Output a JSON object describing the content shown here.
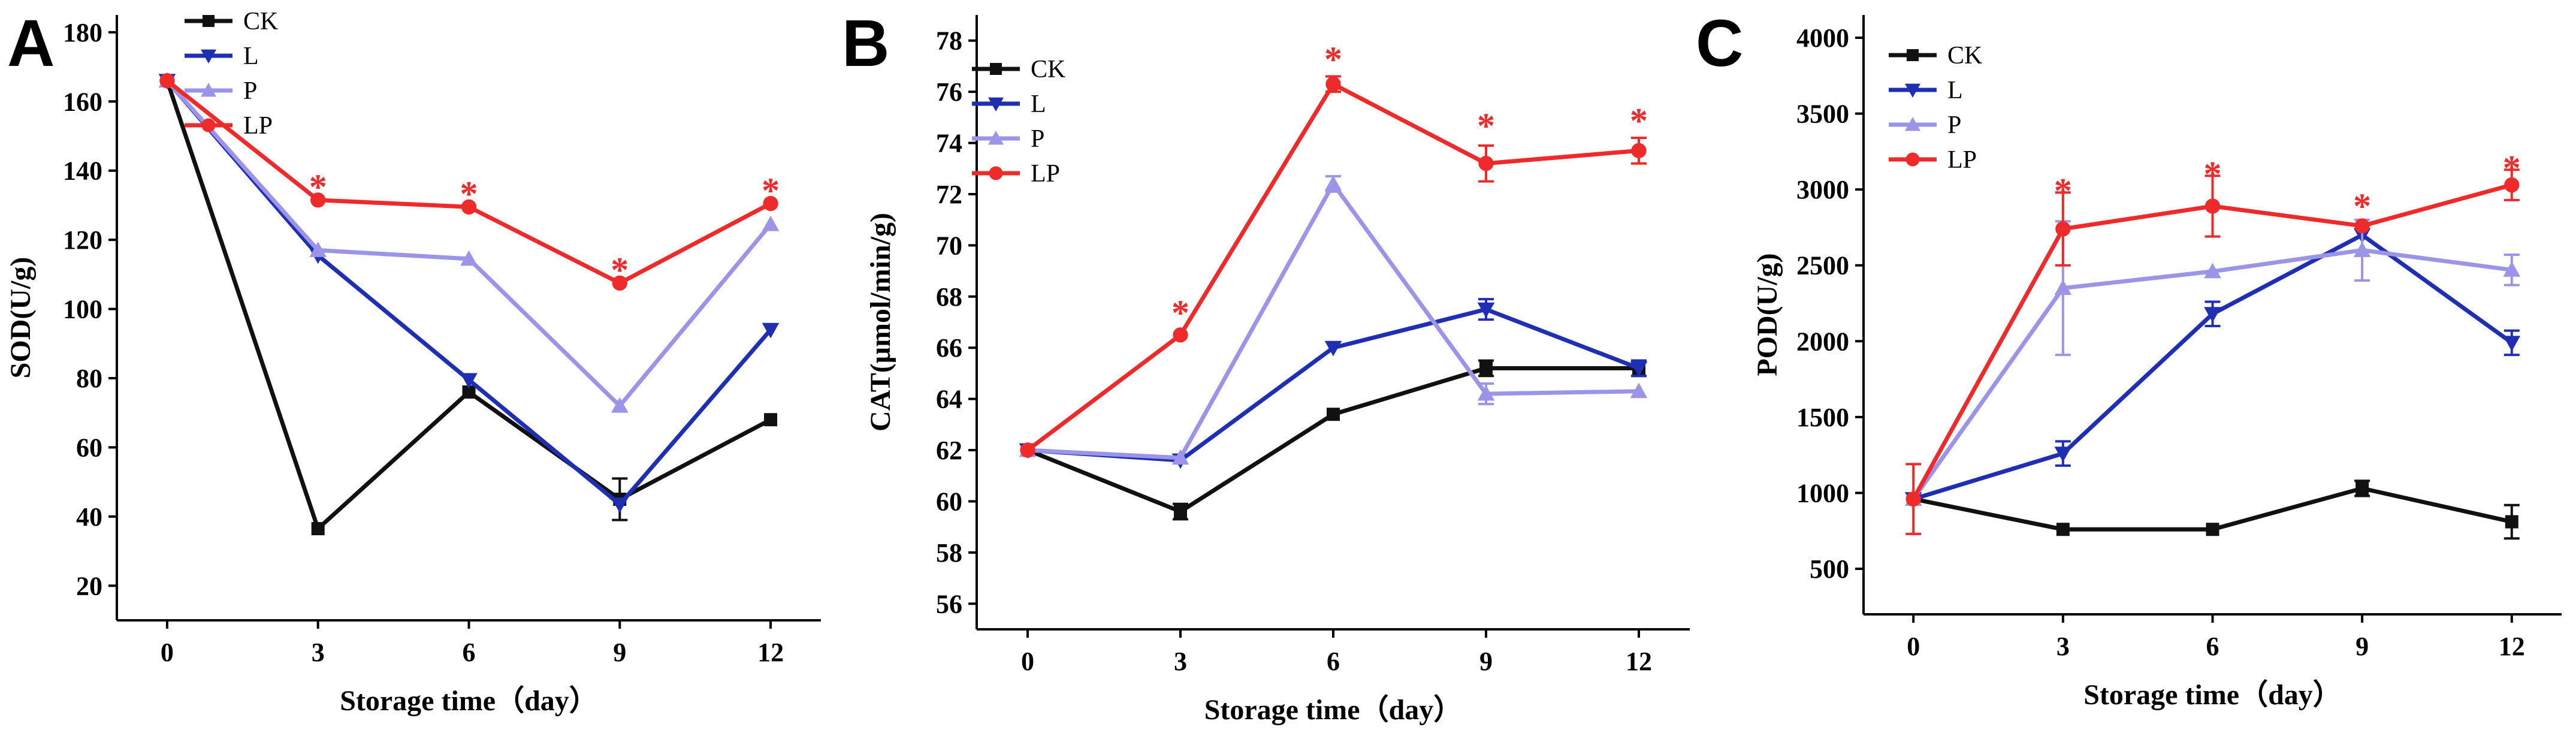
{
  "colors": {
    "CK": "#111111",
    "L": "#1f2fb4",
    "P": "#9c94e8",
    "LP": "#ee2a2a",
    "star": "#ee2a2a",
    "axis": "#000000"
  },
  "chart_data": [
    {
      "type": "line",
      "panel_label": "A",
      "xlabel": "Storage time（day）",
      "ylabel": "SOD(U/g)",
      "x": [
        0,
        3,
        6,
        9,
        12
      ],
      "xticks": [
        "0",
        "3",
        "6",
        "9",
        "12"
      ],
      "xlim": [
        -1,
        13
      ],
      "ylim": [
        10,
        185
      ],
      "yticks": [
        "20",
        "40",
        "60",
        "80",
        "100",
        "120",
        "140",
        "160",
        "180"
      ],
      "ytick_values": [
        20,
        40,
        60,
        80,
        100,
        120,
        140,
        160,
        180
      ],
      "legend_position": "top-left",
      "series": [
        {
          "name": "CK",
          "marker": "square",
          "values": [
            166,
            36.5,
            76,
            45,
            68
          ],
          "errors": [
            0,
            0,
            0,
            6,
            0
          ]
        },
        {
          "name": "L",
          "marker": "triangle-down",
          "values": [
            166,
            115.5,
            79.5,
            43.5,
            94
          ],
          "errors": [
            0,
            0,
            0,
            0,
            0
          ]
        },
        {
          "name": "P",
          "marker": "triangle-up",
          "values": [
            166,
            117,
            114.5,
            72,
            124.5
          ],
          "errors": [
            0,
            0,
            0,
            0,
            0
          ]
        },
        {
          "name": "LP",
          "marker": "circle",
          "values": [
            166,
            131.5,
            129.5,
            107.5,
            130.5
          ],
          "errors": [
            0,
            0,
            0,
            0,
            0
          ]
        }
      ],
      "annotations": [
        {
          "text": "*",
          "x": 3,
          "y": 137
        },
        {
          "text": "*",
          "x": 6,
          "y": 135
        },
        {
          "text": "*",
          "x": 9,
          "y": 113
        },
        {
          "text": "*",
          "x": 12,
          "y": 136
        }
      ]
    },
    {
      "type": "line",
      "panel_label": "B",
      "xlabel": "Storage time（day）",
      "ylabel": "CAT(μmol/min/g)",
      "x": [
        0,
        3,
        6,
        9,
        12
      ],
      "xticks": [
        "0",
        "3",
        "6",
        "9",
        "12"
      ],
      "xlim": [
        -1,
        13
      ],
      "ylim": [
        55,
        79
      ],
      "yticks": [
        "56",
        "58",
        "60",
        "62",
        "64",
        "66",
        "68",
        "70",
        "72",
        "74",
        "76",
        "78"
      ],
      "ytick_values": [
        56,
        58,
        60,
        62,
        64,
        66,
        68,
        70,
        72,
        74,
        76,
        78
      ],
      "legend_position": "top-left",
      "series": [
        {
          "name": "CK",
          "marker": "square",
          "values": [
            62,
            59.6,
            63.4,
            65.2,
            65.2
          ],
          "errors": [
            0,
            0.3,
            0,
            0.3,
            0.3
          ]
        },
        {
          "name": "L",
          "marker": "triangle-down",
          "values": [
            62,
            61.6,
            66,
            67.5,
            65.2
          ],
          "errors": [
            0,
            0,
            0,
            0.4,
            0.3
          ]
        },
        {
          "name": "P",
          "marker": "triangle-up",
          "values": [
            62,
            61.7,
            72.4,
            64.2,
            64.3
          ],
          "errors": [
            0,
            0,
            0.3,
            0.4,
            0
          ]
        },
        {
          "name": "LP",
          "marker": "circle",
          "values": [
            62,
            66.5,
            76.3,
            73.2,
            73.7
          ],
          "errors": [
            0,
            0,
            0.3,
            0.7,
            0.5
          ]
        }
      ],
      "annotations": [
        {
          "text": "*",
          "x": 3,
          "y": 67.6
        },
        {
          "text": "*",
          "x": 6,
          "y": 77.5
        },
        {
          "text": "*",
          "x": 9,
          "y": 74.9
        },
        {
          "text": "*",
          "x": 12,
          "y": 75.1
        }
      ]
    },
    {
      "type": "line",
      "panel_label": "C",
      "xlabel": "Storage time（day）",
      "ylabel": "POD(U/g)",
      "x": [
        0,
        3,
        6,
        9,
        12
      ],
      "xticks": [
        "0",
        "3",
        "6",
        "9",
        "12"
      ],
      "xlim": [
        -1,
        13
      ],
      "ylim": [
        200,
        4150
      ],
      "yticks": [
        "500",
        "1000",
        "1500",
        "2000",
        "2500",
        "3000",
        "3500",
        "4000"
      ],
      "ytick_values": [
        500,
        1000,
        1500,
        2000,
        2500,
        3000,
        3500,
        4000
      ],
      "legend_position": "top-left",
      "series": [
        {
          "name": "CK",
          "marker": "square",
          "values": [
            960,
            760,
            760,
            1030,
            810
          ],
          "errors": [
            0,
            0,
            0,
            50,
            110
          ]
        },
        {
          "name": "L",
          "marker": "triangle-down",
          "values": [
            960,
            1260,
            2180,
            2700,
            1990
          ],
          "errors": [
            0,
            80,
            80,
            0,
            80
          ]
        },
        {
          "name": "P",
          "marker": "triangle-up",
          "values": [
            960,
            2350,
            2460,
            2600,
            2470
          ],
          "errors": [
            0,
            440,
            0,
            200,
            100
          ]
        },
        {
          "name": "LP",
          "marker": "circle",
          "values": [
            960,
            2740,
            2890,
            2760,
            3030
          ],
          "errors": [
            230,
            240,
            200,
            0,
            100
          ]
        }
      ],
      "annotations": [
        {
          "text": "*",
          "x": 3,
          "y": 3030
        },
        {
          "text": "*",
          "x": 6,
          "y": 3140
        },
        {
          "text": "*",
          "x": 9,
          "y": 2930
        },
        {
          "text": "*",
          "x": 12,
          "y": 3180
        }
      ]
    }
  ]
}
